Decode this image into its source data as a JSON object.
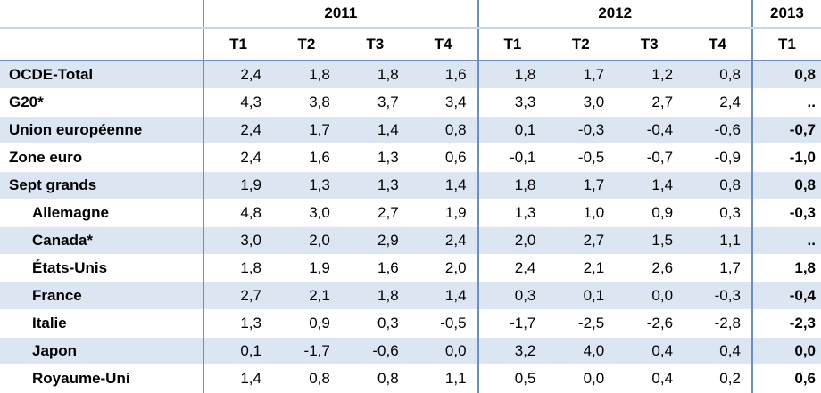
{
  "header": {
    "years": [
      "2011",
      "2012",
      "2013"
    ],
    "quarters": [
      "T1",
      "T2",
      "T3",
      "T4",
      "T1",
      "T2",
      "T3",
      "T4",
      "T1"
    ]
  },
  "rows": [
    {
      "label": "OCDE-Total",
      "indent": false,
      "values": [
        "2,4",
        "1,8",
        "1,8",
        "1,6",
        "1,8",
        "1,7",
        "1,2",
        "0,8",
        "0,8"
      ]
    },
    {
      "label": "G20*",
      "indent": false,
      "values": [
        "4,3",
        "3,8",
        "3,7",
        "3,4",
        "3,3",
        "3,0",
        "2,7",
        "2,4",
        ".."
      ]
    },
    {
      "label": "Union européenne",
      "indent": false,
      "values": [
        "2,4",
        "1,7",
        "1,4",
        "0,8",
        "0,1",
        "-0,3",
        "-0,4",
        "-0,6",
        "-0,7"
      ]
    },
    {
      "label": "Zone euro",
      "indent": false,
      "values": [
        "2,4",
        "1,6",
        "1,3",
        "0,6",
        "-0,1",
        "-0,5",
        "-0,7",
        "-0,9",
        "-1,0"
      ]
    },
    {
      "label": "Sept grands",
      "indent": false,
      "values": [
        "1,9",
        "1,3",
        "1,3",
        "1,4",
        "1,8",
        "1,7",
        "1,4",
        "0,8",
        "0,8"
      ]
    },
    {
      "label": "Allemagne",
      "indent": true,
      "values": [
        "4,8",
        "3,0",
        "2,7",
        "1,9",
        "1,3",
        "1,0",
        "0,9",
        "0,3",
        "-0,3"
      ]
    },
    {
      "label": "Canada*",
      "indent": true,
      "values": [
        "3,0",
        "2,0",
        "2,9",
        "2,4",
        "2,0",
        "2,7",
        "1,5",
        "1,1",
        ".."
      ]
    },
    {
      "label": "États-Unis",
      "indent": true,
      "values": [
        "1,8",
        "1,9",
        "1,6",
        "2,0",
        "2,4",
        "2,1",
        "2,6",
        "1,7",
        "1,8"
      ]
    },
    {
      "label": "France",
      "indent": true,
      "values": [
        "2,7",
        "2,1",
        "1,8",
        "1,4",
        "0,3",
        "0,1",
        "0,0",
        "-0,3",
        "-0,4"
      ]
    },
    {
      "label": "Italie",
      "indent": true,
      "values": [
        "1,3",
        "0,9",
        "0,3",
        "-0,5",
        "-1,7",
        "-2,5",
        "-2,6",
        "-2,8",
        "-2,3"
      ]
    },
    {
      "label": "Japon",
      "indent": true,
      "values": [
        "0,1",
        "-1,7",
        "-0,6",
        "0,0",
        "3,2",
        "4,0",
        "0,4",
        "0,4",
        "0,0"
      ]
    },
    {
      "label": "Royaume-Uni",
      "indent": true,
      "values": [
        "1,4",
        "0,8",
        "0,8",
        "1,1",
        "0,5",
        "0,0",
        "0,4",
        "0,2",
        "0,6"
      ]
    }
  ]
}
